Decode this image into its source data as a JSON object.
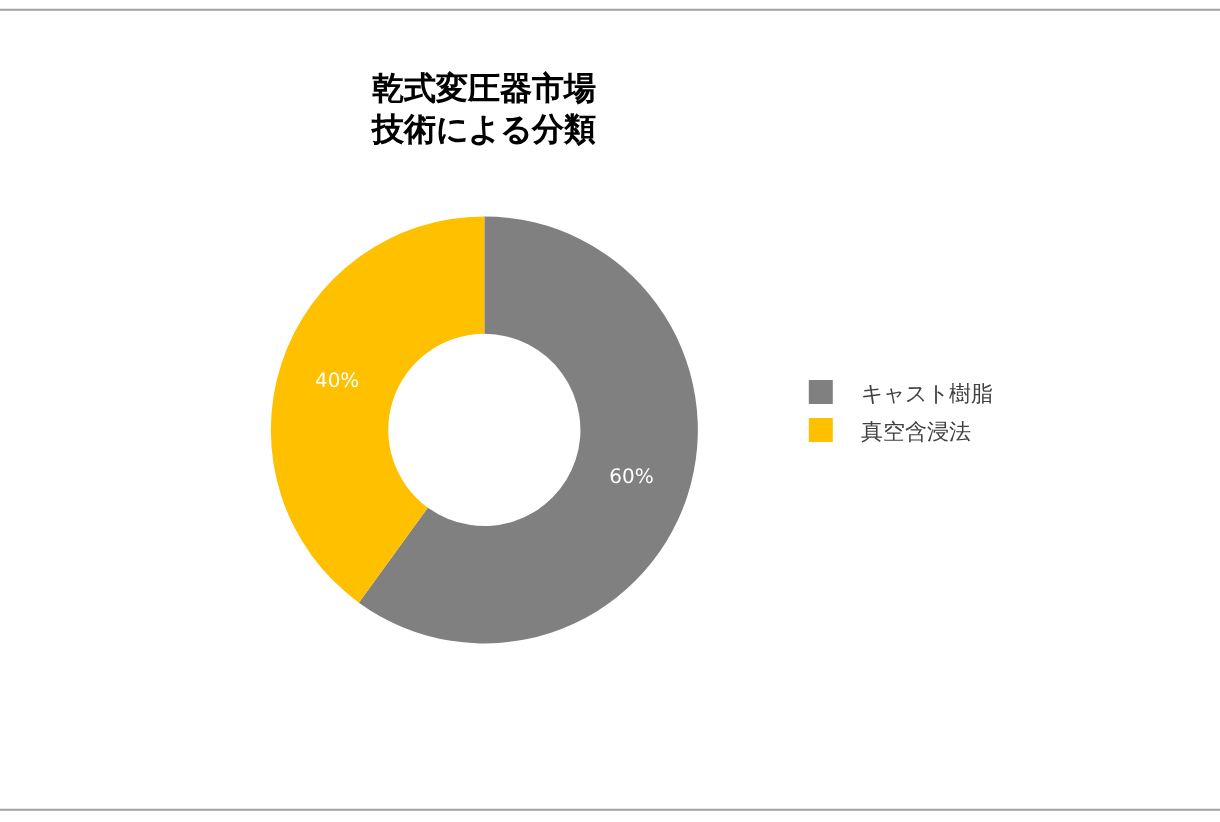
{
  "chart_data": {
    "type": "donut",
    "title": "乾式変圧器市場技術による分類",
    "categories": [
      "キャスト樹脂",
      "真空含浸法"
    ],
    "values": [
      60,
      40
    ],
    "colors": [
      "#808080",
      "#ffc000"
    ],
    "value_labels": [
      "60%",
      "40%"
    ],
    "legend": "right"
  }
}
